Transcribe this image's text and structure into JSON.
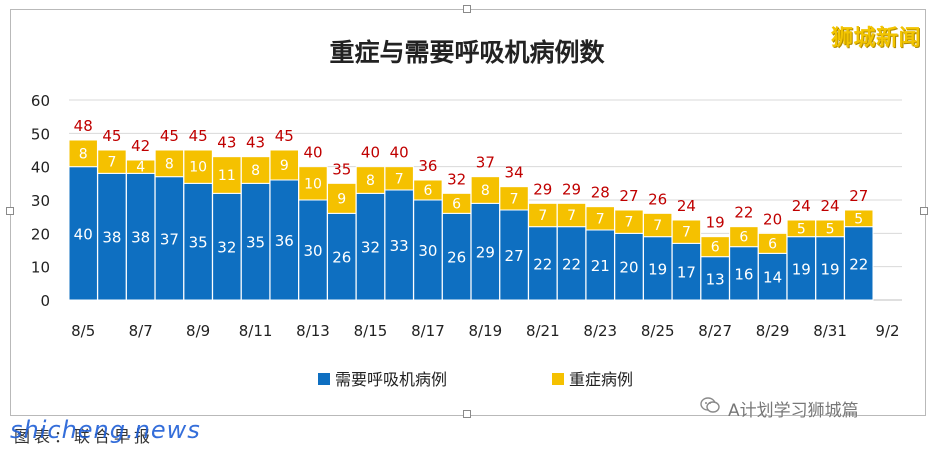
{
  "brand": "狮城新闻",
  "watermark": "A计划学习狮城篇",
  "caption": "图表：联合早报",
  "site": "shicheng.news",
  "colors": {
    "ventilator": "#0e6fc1",
    "severe": "#f5c100",
    "total_label": "#c00000",
    "grid": "#d9d9d9",
    "title": "#222222"
  },
  "chart_data": {
    "type": "bar",
    "stacked": true,
    "title": "重症与需要呼吸机病例数",
    "categories": [
      "8/5",
      "8/6",
      "8/7",
      "8/8",
      "8/9",
      "8/10",
      "8/11",
      "8/12",
      "8/13",
      "8/14",
      "8/15",
      "8/16",
      "8/17",
      "8/18",
      "8/19",
      "8/20",
      "8/21",
      "8/22",
      "8/23",
      "8/24",
      "8/25",
      "8/26",
      "8/27",
      "8/28",
      "8/29",
      "8/30",
      "8/31",
      "9/1"
    ],
    "x_tick_labels": [
      "8/5",
      "8/7",
      "8/9",
      "8/11",
      "8/13",
      "8/15",
      "8/17",
      "8/19",
      "8/21",
      "8/23",
      "8/25",
      "8/27",
      "8/29",
      "8/31",
      "9/2"
    ],
    "series": [
      {
        "name": "需要呼吸机病例",
        "values": [
          40,
          38,
          38,
          37,
          35,
          32,
          35,
          36,
          30,
          26,
          32,
          33,
          30,
          26,
          29,
          27,
          22,
          22,
          21,
          20,
          19,
          17,
          13,
          16,
          14,
          19,
          19,
          22
        ]
      },
      {
        "name": "重症病例",
        "values": [
          8,
          7,
          4,
          8,
          10,
          11,
          8,
          9,
          10,
          9,
          8,
          7,
          6,
          6,
          8,
          7,
          7,
          7,
          7,
          7,
          7,
          7,
          6,
          6,
          6,
          5,
          5,
          5
        ]
      }
    ],
    "totals": [
      48,
      45,
      42,
      45,
      45,
      43,
      43,
      45,
      40,
      35,
      40,
      40,
      36,
      32,
      37,
      34,
      29,
      29,
      28,
      27,
      26,
      24,
      19,
      22,
      20,
      24,
      24,
      27
    ],
    "ylim": [
      0,
      60
    ],
    "yticks": [
      0,
      10,
      20,
      30,
      40,
      50,
      60
    ],
    "grid": true,
    "legend_position": "bottom"
  }
}
